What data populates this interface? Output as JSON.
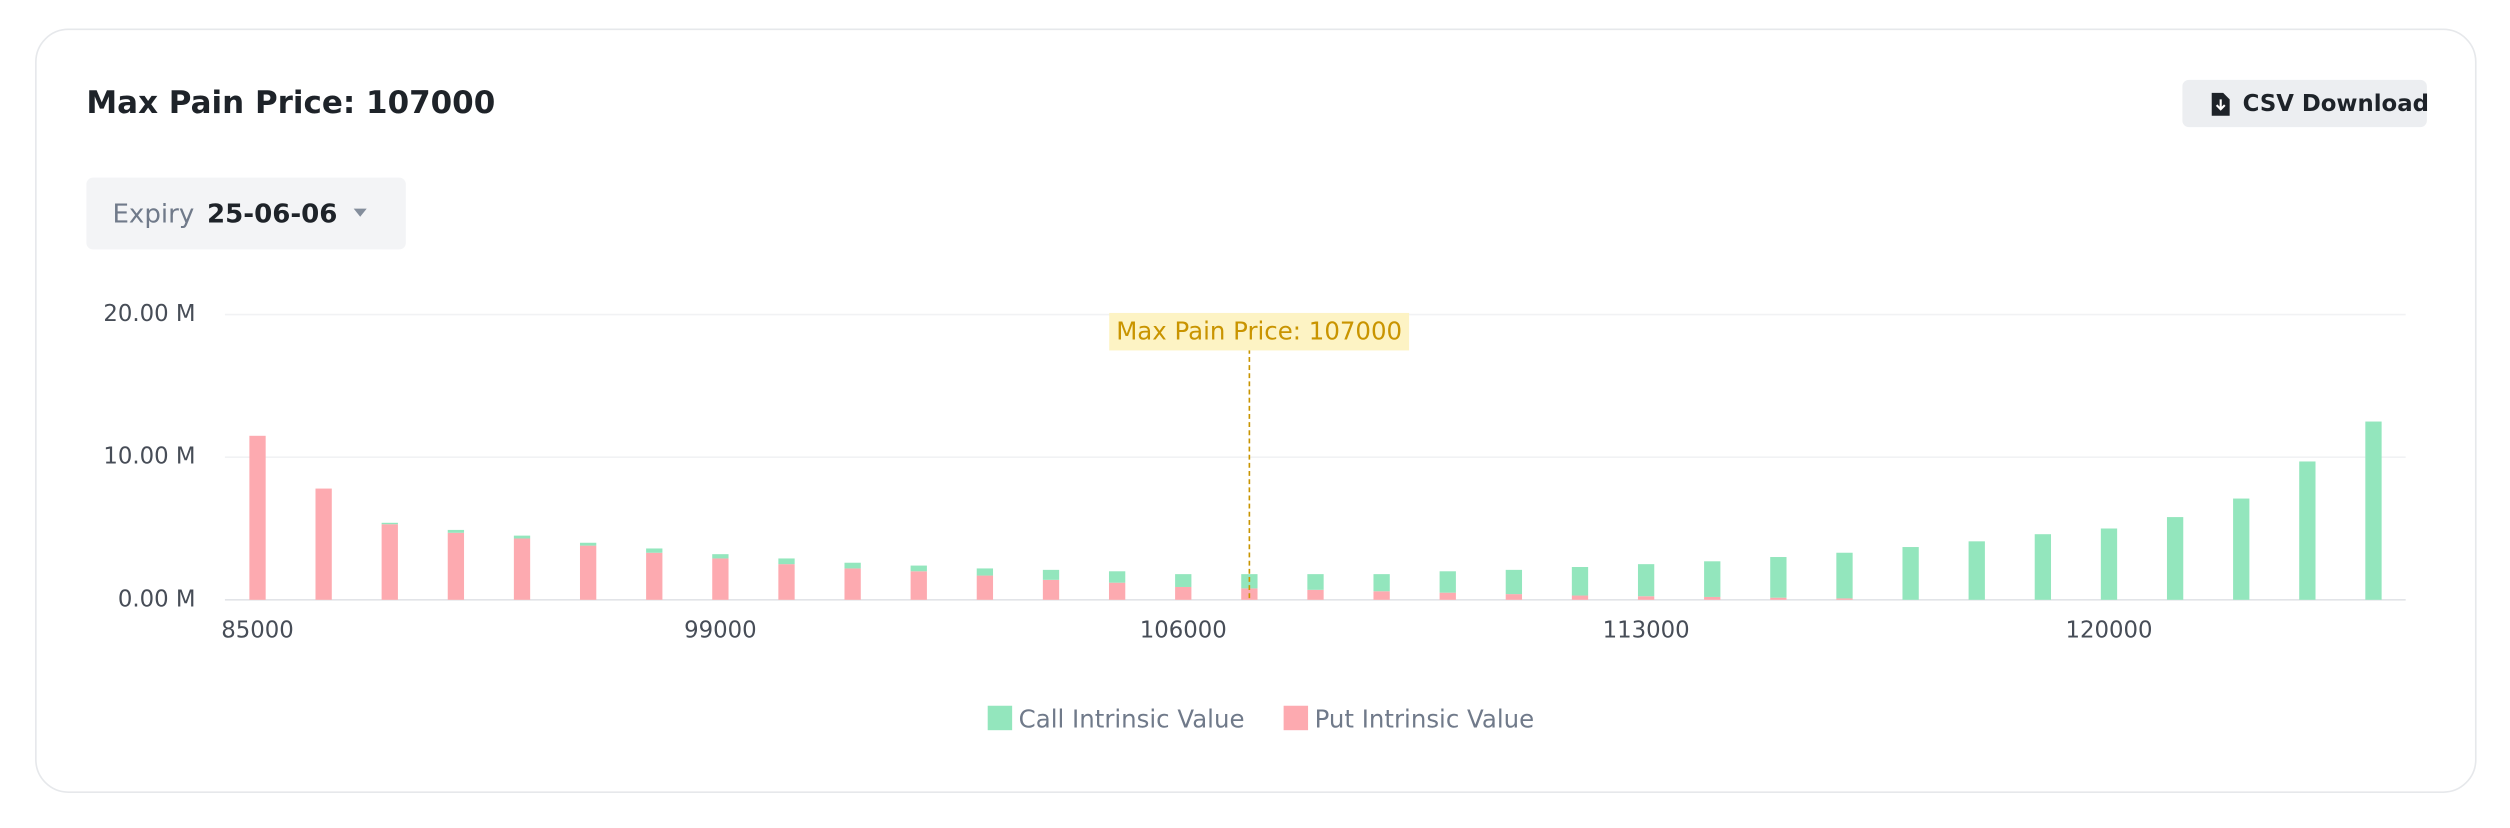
{
  "page": {
    "title": "Max Pain Price: 107000",
    "download_button": "CSV Download",
    "expiry_label": "Expiry",
    "expiry_value": "25-06-06"
  },
  "chart_data": {
    "type": "stacked-bar",
    "categories": [
      "85000",
      null,
      null,
      null,
      null,
      null,
      null,
      "99000",
      null,
      null,
      null,
      null,
      null,
      null,
      "106000",
      null,
      null,
      null,
      null,
      null,
      null,
      "113000",
      null,
      null,
      null,
      null,
      null,
      null,
      "120000",
      null,
      null,
      null,
      null
    ],
    "series": [
      {
        "name": "Put Intrinsic Value",
        "color": "#fdaab0",
        "values": [
          11.5,
          7.8,
          5.3,
          4.7,
          4.3,
          3.8,
          3.3,
          2.9,
          2.5,
          2.2,
          2.0,
          1.7,
          1.4,
          1.2,
          0.9,
          0.8,
          0.7,
          0.6,
          0.5,
          0.4,
          0.3,
          0.25,
          0.2,
          0.15,
          0.1,
          0,
          0,
          0,
          0,
          0,
          0,
          0,
          0
        ]
      },
      {
        "name": "Call Intrinsic Value",
        "color": "#93e6bd",
        "values": [
          0,
          0,
          0.1,
          0.2,
          0.2,
          0.2,
          0.3,
          0.3,
          0.4,
          0.4,
          0.4,
          0.5,
          0.7,
          0.8,
          0.9,
          1.0,
          1.1,
          1.2,
          1.5,
          1.7,
          2.0,
          2.25,
          2.5,
          2.85,
          3.2,
          3.7,
          4.1,
          4.6,
          5.0,
          5.8,
          7.1,
          9.7,
          12.5
        ]
      }
    ],
    "legend_order": [
      "Call Intrinsic Value",
      "Put Intrinsic Value"
    ],
    "ylim": [
      0,
      20
    ],
    "yticks": [
      {
        "value": 0,
        "label": "0.00 M"
      },
      {
        "value": 10,
        "label": "10.00 M"
      },
      {
        "value": 20,
        "label": "20.00 M"
      }
    ],
    "grid": true,
    "annotation": {
      "text": "Max Pain Price: 107000",
      "value": 107000,
      "color": "#c99400",
      "background": "#fdf3c4"
    }
  }
}
